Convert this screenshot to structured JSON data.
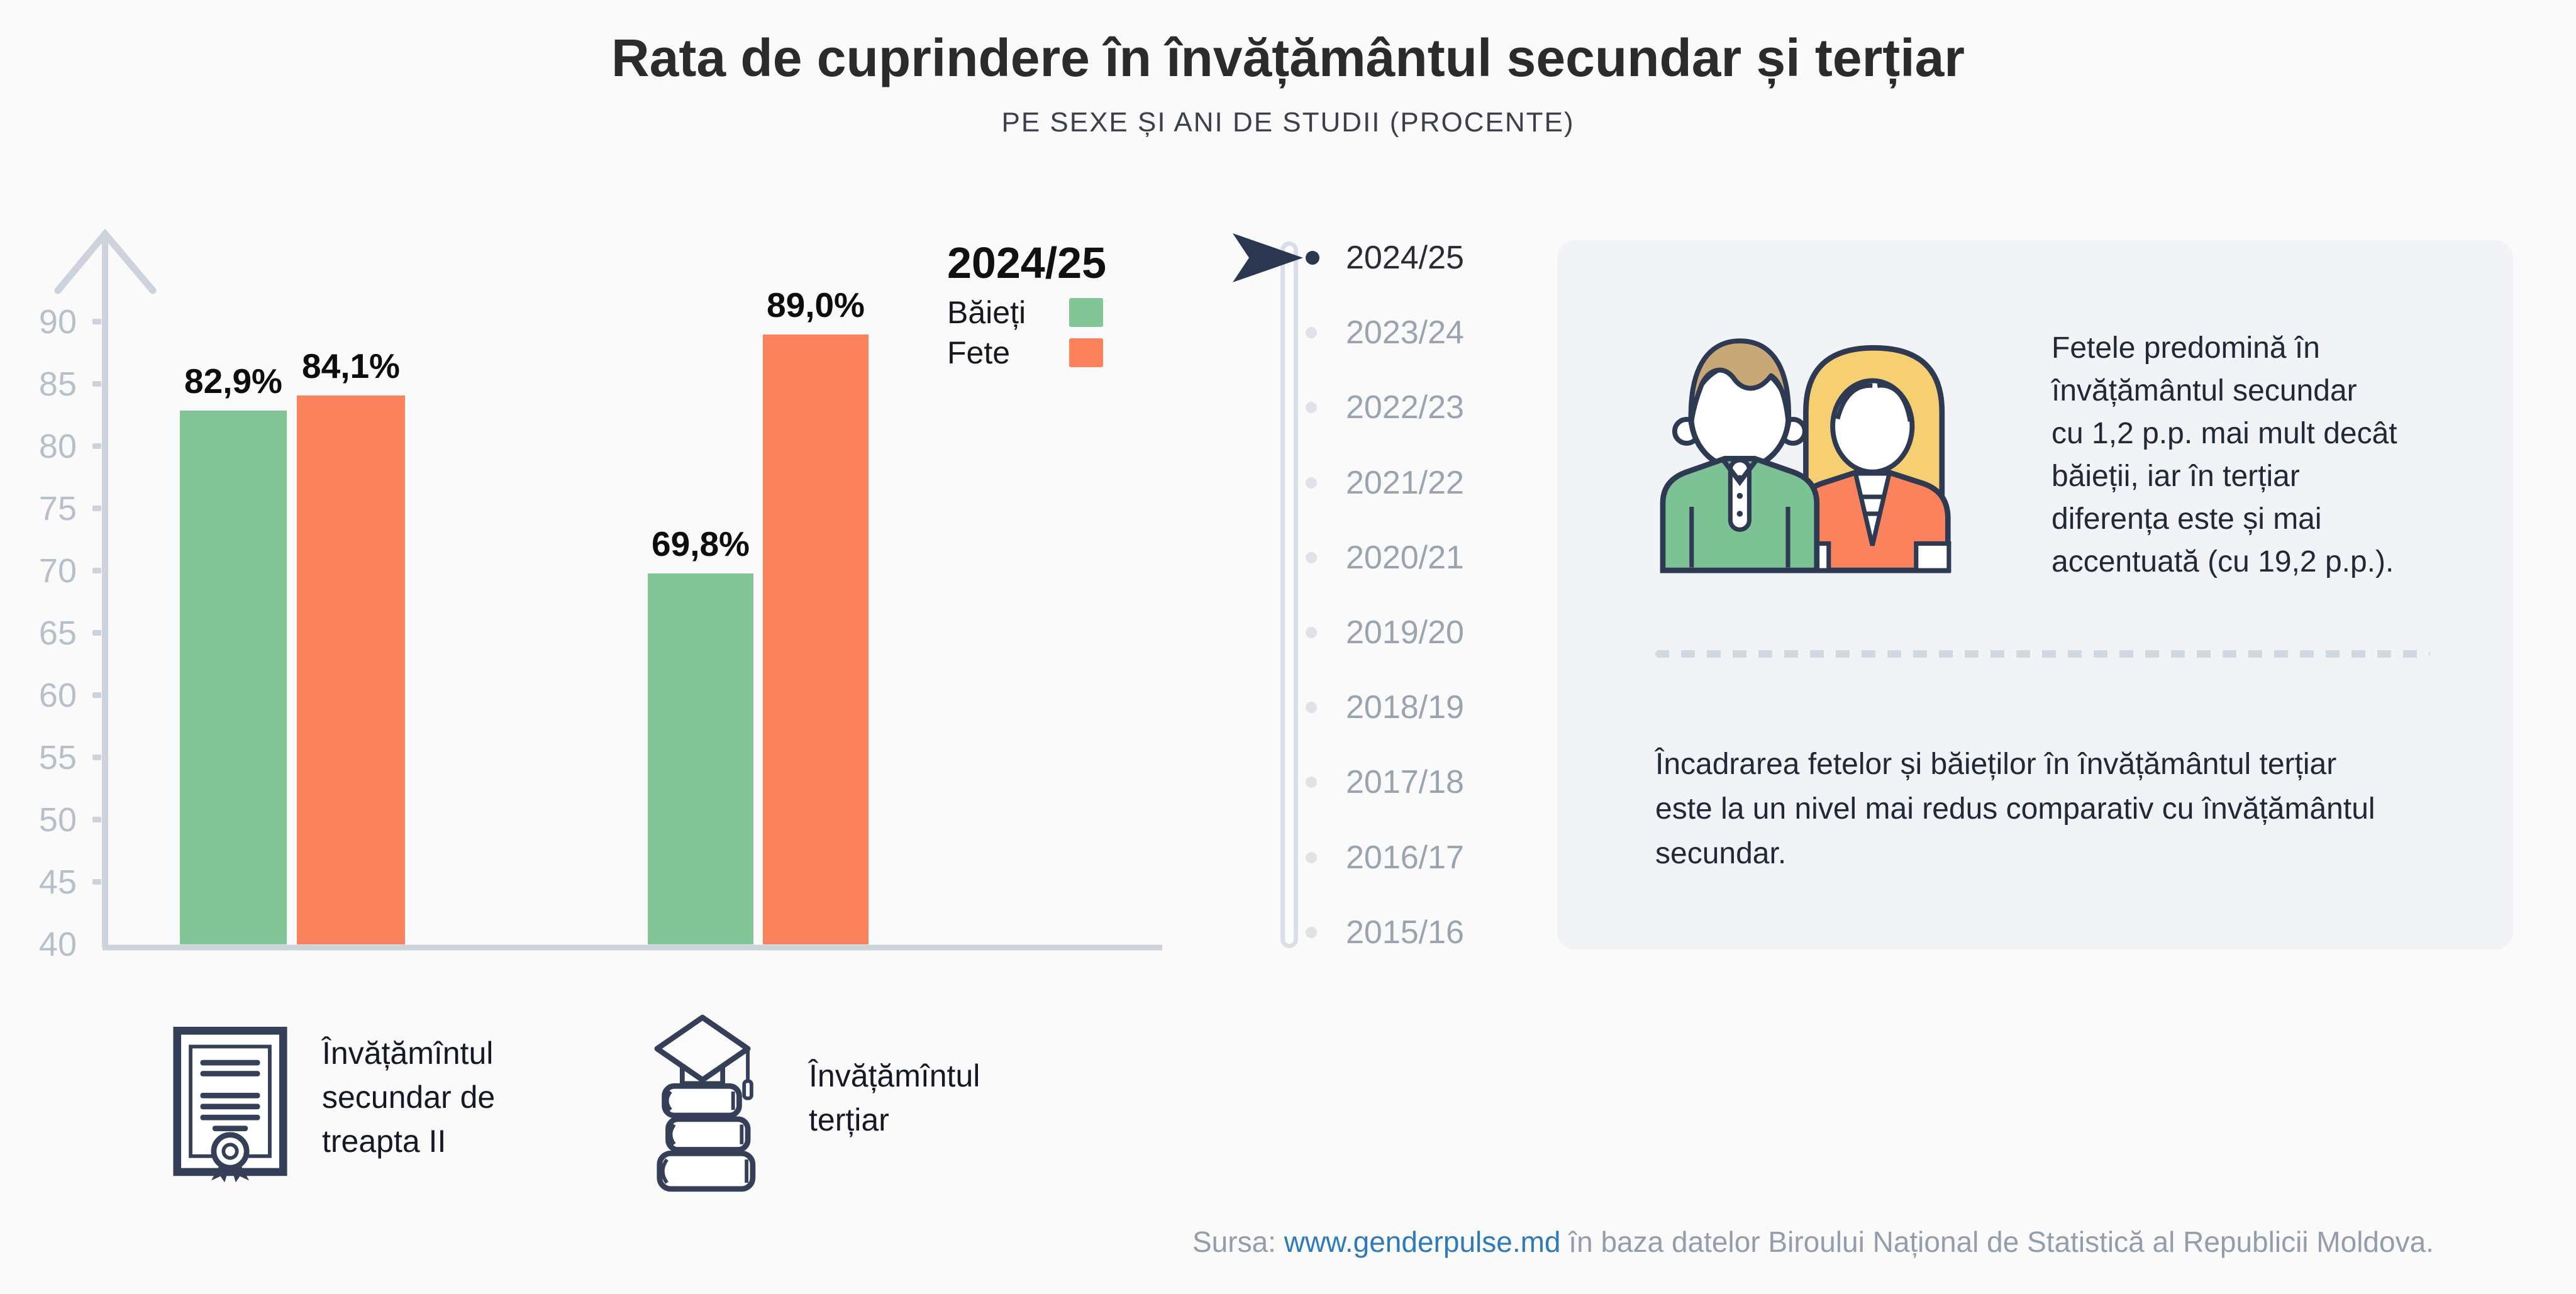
{
  "header": {
    "title": "Rata de cuprindere în învățământul secundar și terțiar",
    "subtitle": "PE SEXE ȘI ANI DE STUDII (PROCENTE)"
  },
  "chart_data": {
    "type": "bar",
    "title": "2024/25",
    "categories": [
      "Învățămîntul secundar de treapta II",
      "Învățămîntul terțiar"
    ],
    "series": [
      {
        "name": "Băieți",
        "color": "#82c697",
        "values": [
          82.9,
          69.8
        ]
      },
      {
        "name": "Fete",
        "color": "#fa825c",
        "values": [
          84.1,
          89.0
        ]
      }
    ],
    "value_labels": {
      "secundar_baieti": "82,9%",
      "secundar_fete": "84,1%",
      "tertiar_baieti": "69,8%",
      "tertiar_fete": "89,0%"
    },
    "xlabel": "",
    "ylabel": "",
    "ylim": [
      40,
      90
    ],
    "yticks": [
      "90",
      "85",
      "80",
      "75",
      "70",
      "65",
      "60",
      "55",
      "50",
      "45",
      "40"
    ],
    "grid": false,
    "legend_position": "top-right"
  },
  "legend": {
    "year": "2024/25",
    "items": [
      {
        "label": "Băieți",
        "color": "#82c697"
      },
      {
        "label": "Fete",
        "color": "#fa825c"
      }
    ]
  },
  "timeline": {
    "selected_year": "2024/25",
    "years": [
      "2024/25",
      "2023/24",
      "2022/23",
      "2021/22",
      "2020/21",
      "2019/20",
      "2018/19",
      "2017/18",
      "2016/17",
      "2015/16"
    ]
  },
  "info_panel": {
    "paragraph1": "Fetele predomină în\nînvățământul secundar\ncu 1,2 p.p. mai mult decât\nbăieții, iar în terțiar\ndiferența este și mai\naccentuată (cu 19,2 p.p.).",
    "paragraph2": "Încadrarea fetelor și băieților în învățământul terțiar\neste la un nivel mai redus comparativ cu învățământul\nsecundar."
  },
  "category_labels": {
    "secundar": "Învățămîntul\nsecundar de\ntreapta II",
    "tertiar": "Învățămîntul\nterțiar"
  },
  "footer": {
    "prefix": "Sursa: ",
    "link": "www.genderpulse.md",
    "suffix": " în baza datelor Biroului Național de Statistică al Republicii Moldova."
  },
  "colors": {
    "background": "#fafafa",
    "panel": "#f1f3f6",
    "green": "#82c697",
    "orange": "#fa825c",
    "axis": "#cdd3dc",
    "axis_text": "#b7c0ca",
    "year_inactive": "#9aa4b1",
    "year_active": "#272c35",
    "navy": "#2b3750",
    "link": "#2f7ab8",
    "footer_text": "#939dab"
  }
}
